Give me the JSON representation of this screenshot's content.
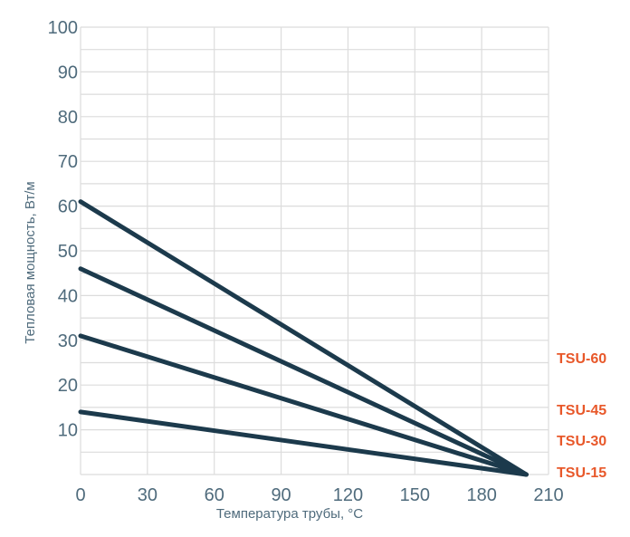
{
  "chart_data": {
    "type": "line",
    "xlabel": "Температура трубы, °C",
    "ylabel": "Тепловая мощность, Вт/м",
    "xlim": [
      0,
      210
    ],
    "ylim": [
      0,
      100
    ],
    "x_ticks": [
      "0",
      "30",
      "60",
      "90",
      "120",
      "150",
      "180",
      "210"
    ],
    "y_ticks": [
      "10",
      "20",
      "30",
      "40",
      "50",
      "60",
      "70",
      "80",
      "90",
      "100"
    ],
    "grid": true,
    "series": [
      {
        "name": "TSU-60",
        "x": [
          0,
          200
        ],
        "y": [
          61,
          0
        ]
      },
      {
        "name": "TSU-45",
        "x": [
          0,
          200
        ],
        "y": [
          46,
          0
        ]
      },
      {
        "name": "TSU-30",
        "x": [
          0,
          200
        ],
        "y": [
          31,
          0
        ]
      },
      {
        "name": "TSU-15",
        "x": [
          0,
          200
        ],
        "y": [
          14,
          0
        ]
      }
    ],
    "colors": {
      "line": "#1c3a4c",
      "grid": "#dcdcdc",
      "tick": "#4f6b7c",
      "series_label": "#e8582a"
    }
  }
}
